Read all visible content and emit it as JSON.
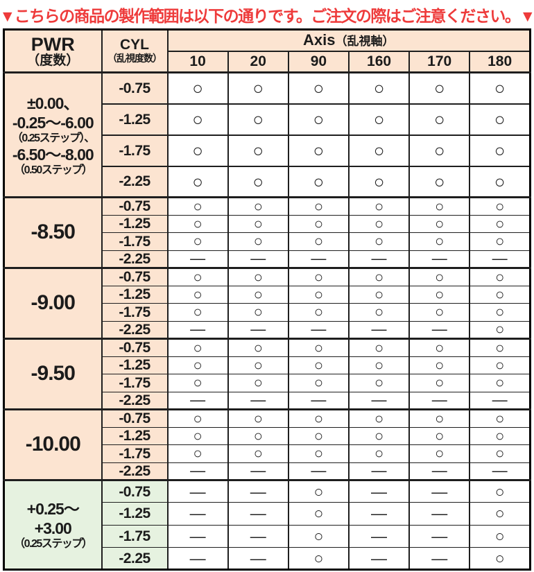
{
  "banner": {
    "text": "▼こちらの商品の製作範囲は以下の通りです。ご注文の際はご注意ください。▼"
  },
  "colors": {
    "banner_red": "#ee3b3b",
    "cell_peach": "#fce4d1",
    "cell_green": "#e6f2e0",
    "border_dark": "#1e1e1e"
  },
  "table": {
    "pwr_header": {
      "main": "PWR",
      "sub": "（度数）"
    },
    "cyl_header": {
      "main": "CYL",
      "sub": "（乱視度数）"
    },
    "axis_header": {
      "main": "Axis",
      "sub": "（乱視軸）"
    },
    "axis_values": [
      "10",
      "20",
      "90",
      "160",
      "170",
      "180"
    ],
    "legend": {
      "available": "○",
      "unavailable": "—"
    },
    "groups": [
      {
        "bg": "peach",
        "row_class": "tall",
        "pwr_lines": [
          {
            "text": "±0.00、",
            "size": "lg"
          },
          {
            "text": "-0.25〜-6.00",
            "size": "lg"
          },
          {
            "text": "（0.25ステップ）、",
            "size": "sm"
          },
          {
            "text": "-6.50〜-8.00",
            "size": "lg"
          },
          {
            "text": "（0.50ステップ）",
            "size": "sm"
          }
        ],
        "rows": [
          {
            "cyl": "-0.75",
            "cells": [
              "○",
              "○",
              "○",
              "○",
              "○",
              "○"
            ]
          },
          {
            "cyl": "-1.25",
            "cells": [
              "○",
              "○",
              "○",
              "○",
              "○",
              "○"
            ]
          },
          {
            "cyl": "-1.75",
            "cells": [
              "○",
              "○",
              "○",
              "○",
              "○",
              "○"
            ]
          },
          {
            "cyl": "-2.25",
            "cells": [
              "○",
              "○",
              "○",
              "○",
              "○",
              "○"
            ]
          }
        ]
      },
      {
        "bg": "peach",
        "row_class": "compact",
        "pwr_lines": [
          {
            "text": "-8.50",
            "size": "xl"
          }
        ],
        "rows": [
          {
            "cyl": "-0.75",
            "cells": [
              "○",
              "○",
              "○",
              "○",
              "○",
              "○"
            ]
          },
          {
            "cyl": "-1.25",
            "cells": [
              "○",
              "○",
              "○",
              "○",
              "○",
              "○"
            ]
          },
          {
            "cyl": "-1.75",
            "cells": [
              "○",
              "○",
              "○",
              "○",
              "○",
              "○"
            ]
          },
          {
            "cyl": "-2.25",
            "cells": [
              "—",
              "—",
              "—",
              "—",
              "—",
              "—"
            ]
          }
        ]
      },
      {
        "bg": "peach",
        "row_class": "compact",
        "pwr_lines": [
          {
            "text": "-9.00",
            "size": "xl"
          }
        ],
        "rows": [
          {
            "cyl": "-0.75",
            "cells": [
              "○",
              "○",
              "○",
              "○",
              "○",
              "○"
            ]
          },
          {
            "cyl": "-1.25",
            "cells": [
              "○",
              "○",
              "○",
              "○",
              "○",
              "○"
            ]
          },
          {
            "cyl": "-1.75",
            "cells": [
              "○",
              "○",
              "○",
              "○",
              "○",
              "○"
            ]
          },
          {
            "cyl": "-2.25",
            "cells": [
              "—",
              "—",
              "—",
              "—",
              "—",
              "○"
            ]
          }
        ]
      },
      {
        "bg": "peach",
        "row_class": "compact",
        "pwr_lines": [
          {
            "text": "-9.50",
            "size": "xl"
          }
        ],
        "rows": [
          {
            "cyl": "-0.75",
            "cells": [
              "○",
              "○",
              "○",
              "○",
              "○",
              "○"
            ]
          },
          {
            "cyl": "-1.25",
            "cells": [
              "○",
              "○",
              "○",
              "○",
              "○",
              "○"
            ]
          },
          {
            "cyl": "-1.75",
            "cells": [
              "○",
              "○",
              "○",
              "○",
              "○",
              "○"
            ]
          },
          {
            "cyl": "-2.25",
            "cells": [
              "—",
              "—",
              "—",
              "—",
              "—",
              "—"
            ]
          }
        ]
      },
      {
        "bg": "peach",
        "row_class": "compact",
        "pwr_lines": [
          {
            "text": "-10.00",
            "size": "xl"
          }
        ],
        "rows": [
          {
            "cyl": "-0.75",
            "cells": [
              "○",
              "○",
              "○",
              "○",
              "○",
              "○"
            ]
          },
          {
            "cyl": "-1.25",
            "cells": [
              "○",
              "○",
              "○",
              "○",
              "○",
              "○"
            ]
          },
          {
            "cyl": "-1.75",
            "cells": [
              "○",
              "○",
              "○",
              "○",
              "○",
              "○"
            ]
          },
          {
            "cyl": "-2.25",
            "cells": [
              "—",
              "—",
              "—",
              "—",
              "—",
              "—"
            ]
          }
        ]
      },
      {
        "bg": "green",
        "row_class": "medium",
        "pwr_lines": [
          {
            "text": "+0.25〜",
            "size": "lg"
          },
          {
            "text": "+3.00",
            "size": "lg"
          },
          {
            "text": "（0.25ステップ）",
            "size": "sm"
          }
        ],
        "rows": [
          {
            "cyl": "-0.75",
            "cells": [
              "—",
              "—",
              "○",
              "—",
              "—",
              "○"
            ]
          },
          {
            "cyl": "-1.25",
            "cells": [
              "—",
              "—",
              "○",
              "—",
              "—",
              "○"
            ]
          },
          {
            "cyl": "-1.75",
            "cells": [
              "—",
              "—",
              "○",
              "—",
              "—",
              "○"
            ]
          },
          {
            "cyl": "-2.25",
            "cells": [
              "—",
              "—",
              "○",
              "—",
              "—",
              "○"
            ]
          }
        ]
      }
    ]
  }
}
